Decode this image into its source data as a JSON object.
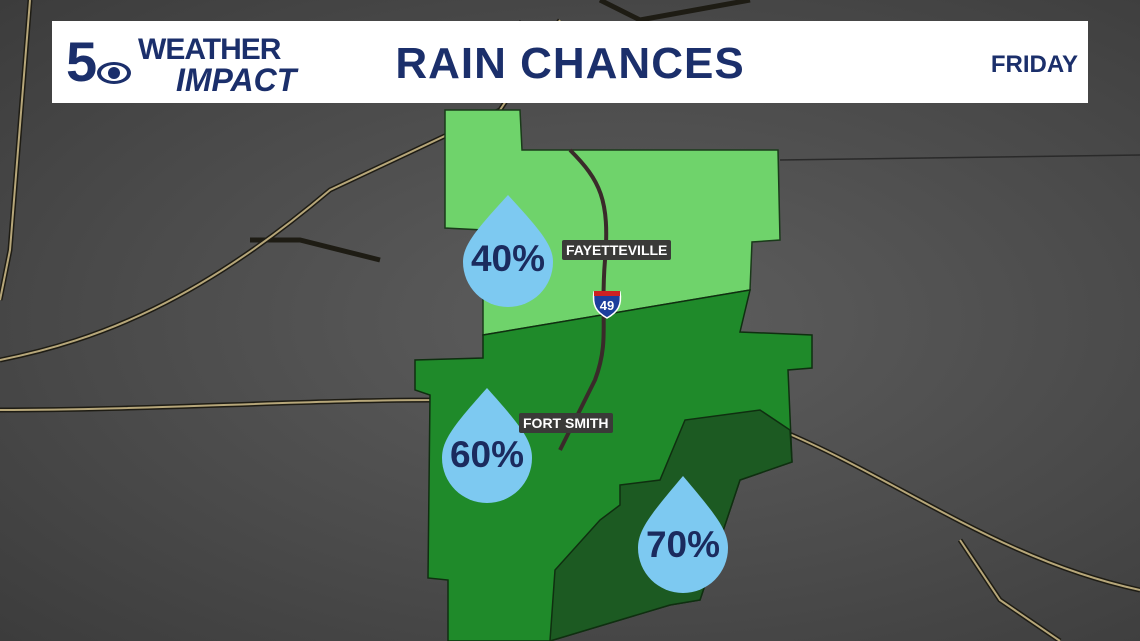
{
  "header": {
    "logo_text": "5 WEATHER IMPACT",
    "title": "RAIN CHANCES",
    "day": "FRIDAY"
  },
  "cities": {
    "fayetteville": "FAYETTEVILLE",
    "fort_smith": "FORT SMITH"
  },
  "highway": {
    "shield": "49"
  },
  "zones": [
    {
      "label": "40%",
      "color": "#6fd36b"
    },
    {
      "label": "60%",
      "color": "#1f8a2a"
    },
    {
      "label": "70%",
      "color": "#1c5a22"
    }
  ],
  "colors": {
    "drop": "#7dc9f1",
    "text": "#1b2f6b",
    "road": "#2c2a22"
  }
}
